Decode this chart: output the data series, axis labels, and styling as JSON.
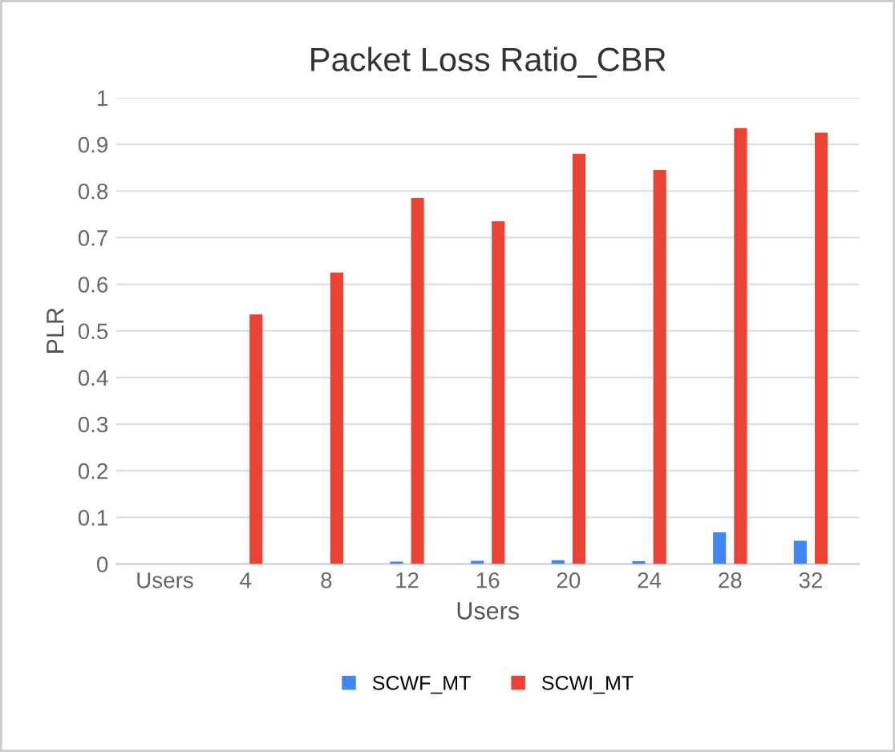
{
  "chart_data": {
    "type": "bar",
    "title": "Packet Loss Ratio_CBR",
    "xlabel": "Users",
    "ylabel": "PLR",
    "categories": [
      "Users",
      "4",
      "8",
      "12",
      "16",
      "20",
      "24",
      "28",
      "32"
    ],
    "series": [
      {
        "name": "SCWF_MT",
        "color": "#4285f4",
        "values": [
          null,
          0,
          0,
          0.005,
          0.007,
          0.008,
          0.006,
          0.068,
          0.05
        ]
      },
      {
        "name": "SCWI_MT",
        "color": "#ea4335",
        "values": [
          null,
          0.535,
          0.625,
          0.785,
          0.735,
          0.88,
          0.845,
          0.935,
          0.925
        ]
      }
    ],
    "ylim": [
      0,
      1
    ],
    "yticks": [
      0,
      0.1,
      0.2,
      0.3,
      0.4,
      0.5,
      0.6,
      0.7,
      0.8,
      0.9,
      1
    ],
    "grid": "y",
    "legend": "bottom"
  }
}
